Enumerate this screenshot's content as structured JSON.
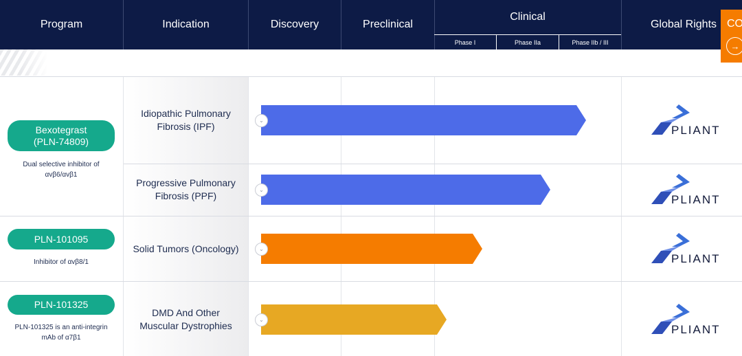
{
  "header": {
    "program": "Program",
    "indication": "Indication",
    "discovery": "Discovery",
    "preclinical": "Preclinical",
    "clinical": "Clinical",
    "phases": [
      "Phase I",
      "Phase IIa",
      "Phase IIb / III"
    ],
    "global_rights": "Global Rights",
    "contact_label": "CO",
    "contact_arrow": "→"
  },
  "rows": [
    {
      "program_lines": [
        "Bexotegrast",
        "(PLN-74809)"
      ],
      "description_lines": [
        "Dual selective inhibitor of",
        "αvβ6/αvβ1"
      ],
      "indications": [
        {
          "lines": [
            "Idiopathic Pulmonary",
            "Fibrosis (IPF)"
          ],
          "stage": "Phase IIb / III",
          "progress": 0.91,
          "color": "#4d6be8",
          "rights": "PLIANT"
        },
        {
          "lines": [
            "Progressive Pulmonary",
            "Fibrosis (PPF)"
          ],
          "stage": "Phase IIa",
          "progress": 0.81,
          "color": "#4d6be8",
          "rights": "PLIANT"
        }
      ]
    },
    {
      "program_lines": [
        "PLN-101095"
      ],
      "description_lines": [
        "Inhibitor of αvβ8/1"
      ],
      "indications": [
        {
          "lines": [
            "Solid Tumors (Oncology)"
          ],
          "stage": "Phase I",
          "progress": 0.62,
          "color": "#f57c00",
          "rights": "PLIANT"
        }
      ]
    },
    {
      "program_lines": [
        "PLN-101325"
      ],
      "description_lines": [
        "PLN-101325 is an anti-integrin",
        "mAb of α7β1"
      ],
      "indications": [
        {
          "lines": [
            "DMD And Other",
            "Muscular Dystrophies"
          ],
          "stage": "Preclinical",
          "progress": 0.52,
          "color": "#e7a823",
          "rights": "PLIANT"
        }
      ]
    }
  ],
  "colors": {
    "header_bg": "#0d1b46",
    "pill": "#15a98c",
    "contact": "#f57c00"
  },
  "icons": [
    "chevron-down-icon",
    "arrow-right-icon",
    "pliant-logo"
  ]
}
